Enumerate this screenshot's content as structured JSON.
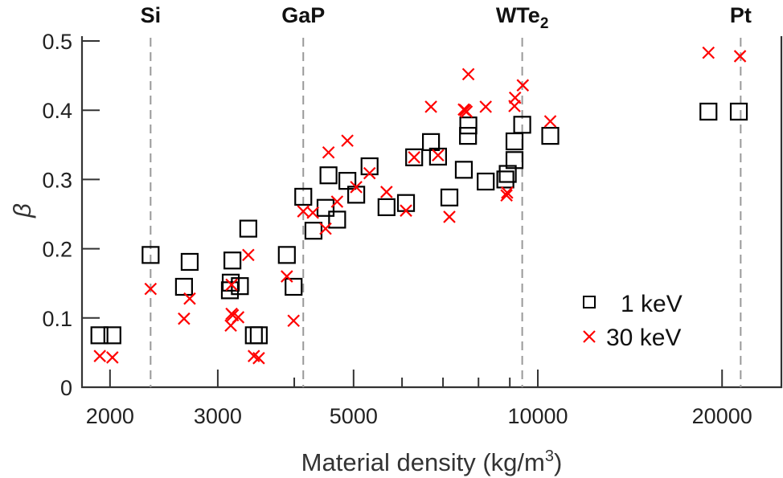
{
  "chart_data": {
    "type": "scatter",
    "xlabel": "Material density (kg/m",
    "xlabel_sup": "3",
    "xlabel_end": ")",
    "ylabel": "β",
    "xscale": "log",
    "xlim": [
      1800,
      25000
    ],
    "ylim": [
      0,
      0.5
    ],
    "grid": false,
    "legend_position": "bottom-right",
    "x_ticks": [
      2000,
      3000,
      5000,
      10000,
      20000
    ],
    "x_tick_labels": [
      "2000",
      "3000",
      "5000",
      "10000",
      "20000"
    ],
    "x_minor_ticks": [
      4000,
      6000,
      7000,
      8000,
      9000
    ],
    "y_ticks": [
      0,
      0.1,
      0.2,
      0.3,
      0.4,
      0.5
    ],
    "y_tick_labels": [
      "0",
      "0.1",
      "0.2",
      "0.3",
      "0.4",
      "0.5"
    ],
    "reference_lines": [
      {
        "label": "Si",
        "sub": "",
        "x": 2330
      },
      {
        "label": "GaP",
        "sub": "",
        "x": 4138
      },
      {
        "label": "WTe",
        "sub": "2",
        "x": 9430
      },
      {
        "label": "Pt",
        "sub": "",
        "x": 21450
      }
    ],
    "series": [
      {
        "name": "1 keV",
        "marker": "square",
        "color": "#000000",
        "points": [
          [
            1922,
            0.075
          ],
          [
            2018,
            0.075
          ],
          [
            2330,
            0.191
          ],
          [
            2642,
            0.145
          ],
          [
            2699,
            0.181
          ],
          [
            3140,
            0.14
          ],
          [
            3150,
            0.151
          ],
          [
            3170,
            0.183
          ],
          [
            3260,
            0.146
          ],
          [
            3365,
            0.229
          ],
          [
            3436,
            0.075
          ],
          [
            3500,
            0.075
          ],
          [
            3890,
            0.191
          ],
          [
            3990,
            0.145
          ],
          [
            4138,
            0.275
          ],
          [
            4300,
            0.226
          ],
          [
            4500,
            0.259
          ],
          [
            4550,
            0.306
          ],
          [
            4700,
            0.242
          ],
          [
            4885,
            0.298
          ],
          [
            5050,
            0.278
          ],
          [
            5310,
            0.319
          ],
          [
            5660,
            0.26
          ],
          [
            6090,
            0.266
          ],
          [
            6280,
            0.332
          ],
          [
            6690,
            0.354
          ],
          [
            6870,
            0.333
          ],
          [
            7170,
            0.274
          ],
          [
            7570,
            0.314
          ],
          [
            7690,
            0.363
          ],
          [
            7700,
            0.378
          ],
          [
            8220,
            0.297
          ],
          [
            8850,
            0.3
          ],
          [
            8930,
            0.308
          ],
          [
            9160,
            0.355
          ],
          [
            9160,
            0.328
          ],
          [
            9430,
            0.379
          ],
          [
            10480,
            0.363
          ],
          [
            19000,
            0.398
          ],
          [
            21300,
            0.398
          ]
        ]
      },
      {
        "name": "30 keV",
        "marker": "x",
        "color": "#ff0000",
        "points": [
          [
            1925,
            0.045
          ],
          [
            2018,
            0.043
          ],
          [
            2330,
            0.142
          ],
          [
            2642,
            0.099
          ],
          [
            2699,
            0.128
          ],
          [
            3150,
            0.089
          ],
          [
            3160,
            0.106
          ],
          [
            3175,
            0.104
          ],
          [
            3160,
            0.148
          ],
          [
            3240,
            0.101
          ],
          [
            3365,
            0.191
          ],
          [
            3436,
            0.045
          ],
          [
            3500,
            0.042
          ],
          [
            3890,
            0.16
          ],
          [
            3990,
            0.096
          ],
          [
            4138,
            0.254
          ],
          [
            4290,
            0.252
          ],
          [
            4500,
            0.229
          ],
          [
            4550,
            0.339
          ],
          [
            4700,
            0.268
          ],
          [
            4885,
            0.356
          ],
          [
            5050,
            0.289
          ],
          [
            5310,
            0.309
          ],
          [
            5660,
            0.282
          ],
          [
            6090,
            0.255
          ],
          [
            6280,
            0.332
          ],
          [
            6690,
            0.405
          ],
          [
            6870,
            0.335
          ],
          [
            7170,
            0.246
          ],
          [
            7570,
            0.401
          ],
          [
            7610,
            0.4
          ],
          [
            7650,
            0.398
          ],
          [
            7700,
            0.452
          ],
          [
            8220,
            0.405
          ],
          [
            8890,
            0.277
          ],
          [
            8910,
            0.281
          ],
          [
            9160,
            0.406
          ],
          [
            9180,
            0.418
          ],
          [
            9450,
            0.436
          ],
          [
            10480,
            0.384
          ],
          [
            19000,
            0.483
          ],
          [
            21400,
            0.478
          ]
        ]
      }
    ]
  }
}
